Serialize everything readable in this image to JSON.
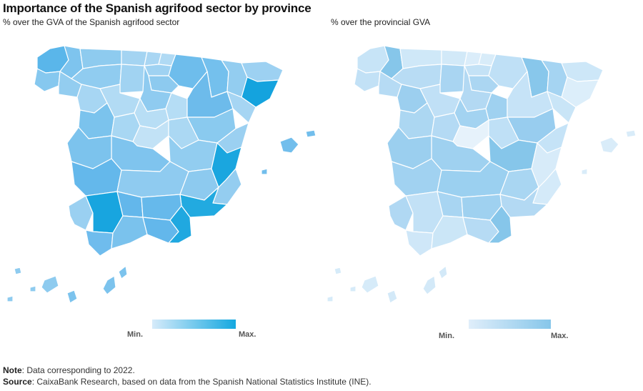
{
  "title": "Importance of the Spanish agrifood sector by province",
  "maps": [
    {
      "subtitle": "% over the GVA of the Spanish agrifood sector",
      "legend": {
        "min": "Min.",
        "max": "Max.",
        "color_min": "#d6ebfa",
        "color_max": "#14a8e0"
      }
    },
    {
      "subtitle": "% over the provincial GVA",
      "legend": {
        "min": "Min.",
        "max": "Max.",
        "color_min": "#e0eefa",
        "color_max": "#86c6ea"
      }
    }
  ],
  "note": {
    "label": "Note",
    "text": ": Data corresponding to 2022."
  },
  "source": {
    "label": "Source",
    "text": ": CaixaBank Research, based on data from the Spanish National Statistics Institute (INE)."
  }
}
